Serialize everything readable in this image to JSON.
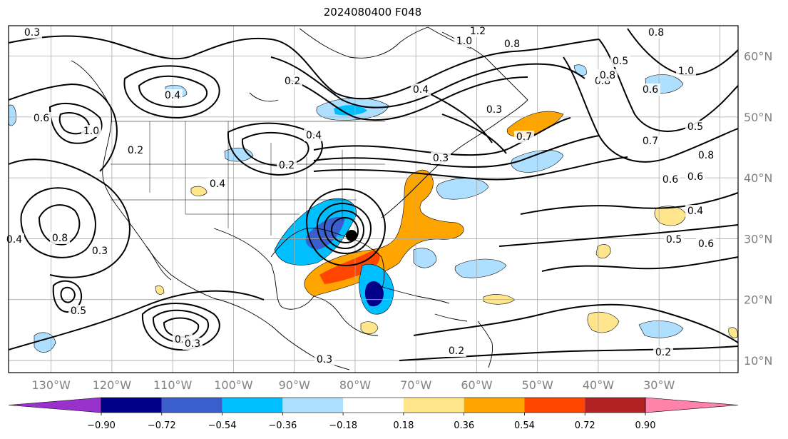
{
  "title": "2024080400 F048",
  "map": {
    "lon_labels": [
      "130°W",
      "120°W",
      "110°W",
      "100°W",
      "90°W",
      "80°W",
      "70°W",
      "60°W",
      "50°W",
      "40°W",
      "30°W"
    ],
    "lat_labels": [
      "60°N",
      "50°N",
      "40°N",
      "30°N",
      "20°N",
      "10°N"
    ],
    "lon_range": [
      -137,
      -17
    ],
    "lat_range": [
      8,
      65
    ],
    "gridlines": true,
    "contour_labels": [
      "0.3",
      "1.2",
      "1.0",
      "0.8",
      "0.5",
      "0.8",
      "1.0",
      "0.8",
      "0.4",
      "0.2",
      "0.6",
      "0.8",
      "1.0",
      "0.4",
      "0.2",
      "0.4",
      "0.2",
      "0.4",
      "0.3",
      "0.6",
      "0.7",
      "0.8",
      "0.6",
      "0.4",
      "0.5",
      "0.6",
      "0.4",
      "0.8",
      "0.6",
      "0.3",
      "0.5",
      "0.5",
      "0.3",
      "0.3",
      "0.2",
      "0.3",
      "0.2",
      "0.7",
      "0.5"
    ]
  },
  "colorbar": {
    "ticks": [
      "−0.90",
      "−0.72",
      "−0.54",
      "−0.36",
      "−0.18",
      "0.18",
      "0.36",
      "0.54",
      "0.72",
      "0.90"
    ],
    "colors": [
      "#9932cc",
      "#00008b",
      "#3a5fcd",
      "#00bfff",
      "#afdfff",
      "#ffffff",
      "#ffe68c",
      "#ffa500",
      "#ff4500",
      "#b22222",
      "#ff82ab"
    ]
  }
}
